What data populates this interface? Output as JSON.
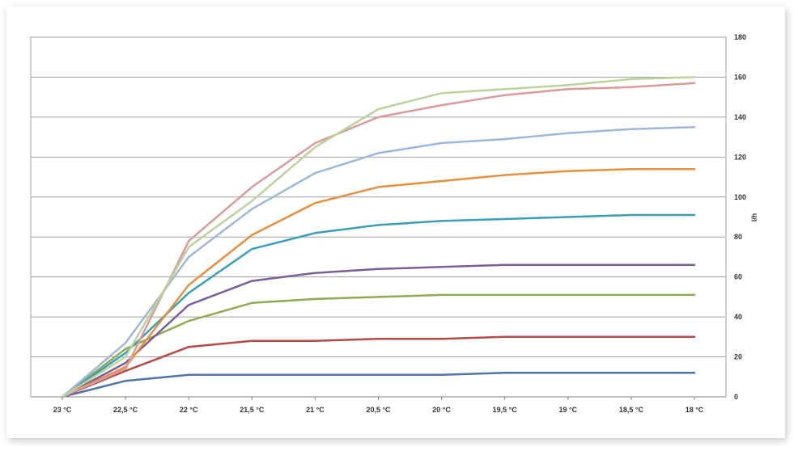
{
  "chart_data": {
    "type": "line",
    "title": "",
    "xlabel": "",
    "ylabel": "l/h",
    "ylim": [
      0,
      180
    ],
    "yticks": [
      "0",
      "20",
      "40",
      "60",
      "80",
      "100",
      "120",
      "140",
      "160",
      "180"
    ],
    "grid": true,
    "legend": "none",
    "categories": [
      "23 °C",
      "22,5 °C",
      "22 °C",
      "21,5 °C",
      "21 °C",
      "20,5 °C",
      "20 °C",
      "19,5 °C",
      "19 °C",
      "18,5 °C",
      "18 °C"
    ],
    "series": [
      {
        "color": "#4f74a7",
        "values": [
          0,
          8,
          11,
          11,
          11,
          11,
          11,
          12,
          12,
          12,
          12
        ]
      },
      {
        "color": "#b54a47",
        "values": [
          0,
          13,
          25,
          28,
          28,
          29,
          29,
          30,
          30,
          30,
          30
        ]
      },
      {
        "color": "#8fab51",
        "values": [
          0,
          24,
          38,
          47,
          49,
          50,
          51,
          51,
          51,
          51,
          51
        ]
      },
      {
        "color": "#7a5e99",
        "values": [
          0,
          17,
          46,
          58,
          62,
          64,
          65,
          66,
          66,
          66,
          66
        ]
      },
      {
        "color": "#3a9fb6",
        "values": [
          0,
          22,
          52,
          74,
          82,
          86,
          88,
          89,
          90,
          91,
          91
        ]
      },
      {
        "color": "#e3913f",
        "values": [
          0,
          15,
          56,
          81,
          97,
          105,
          108,
          111,
          113,
          114,
          114
        ]
      },
      {
        "color": "#9fb7d8",
        "values": [
          0,
          27,
          70,
          94,
          112,
          122,
          127,
          129,
          132,
          134,
          135
        ]
      },
      {
        "color": "#d99b9a",
        "values": [
          0,
          14,
          78,
          105,
          127,
          140,
          146,
          151,
          154,
          155,
          157
        ]
      },
      {
        "color": "#bcd29b",
        "values": [
          0,
          20,
          75,
          98,
          125,
          144,
          152,
          154,
          156,
          159,
          160
        ]
      }
    ]
  }
}
